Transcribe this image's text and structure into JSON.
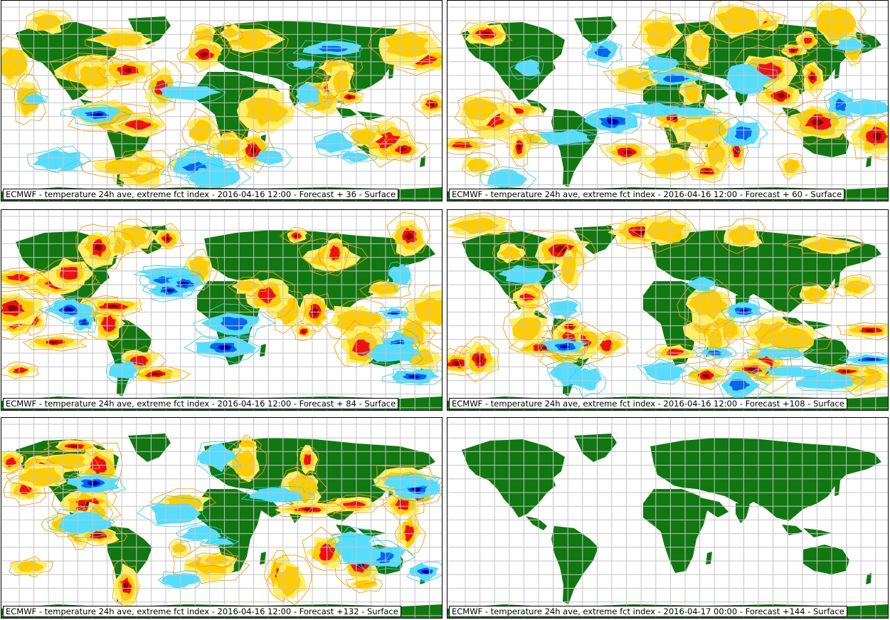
{
  "colors": {
    "land": "#117711",
    "grid": "#c4c4c4",
    "pale_yellow": "#ffee66",
    "yellow": "#ffcc00",
    "orange_contour": "#ff9900",
    "red": "#ee1111",
    "dark_red": "#880000",
    "cyan": "#55ddff",
    "cyan_contour": "#33ccee",
    "blue": "#0066ee",
    "dark_blue": "#0000aa"
  },
  "panels": [
    {
      "caption": "ECMWF - temperature 24h ave, extreme fct index - 2016-04-16 12:00 - Forecast + 36 - Surface",
      "has_data": true
    },
    {
      "caption": "ECMWF - temperature 24h ave, extreme fct index - 2016-04-16 12:00 - Forecast + 60 - Surface",
      "has_data": true
    },
    {
      "caption": "ECMWF - temperature 24h ave, extreme fct index - 2016-04-16 12:00 - Forecast + 84 - Surface",
      "has_data": true
    },
    {
      "caption": "ECMWF - temperature 24h ave, extreme fct index - 2016-04-16 12:00 - Forecast +108 - Surface",
      "has_data": true
    },
    {
      "caption": "ECMWF - temperature 24h ave, extreme fct index - 2016-04-16 12:00 - Forecast +132 - Surface",
      "has_data": true
    },
    {
      "caption": "ECMWF - temperature 24h ave, extreme fct index - 2016-04-17 00:00 - Forecast +144 - Surface",
      "has_data": false
    }
  ]
}
